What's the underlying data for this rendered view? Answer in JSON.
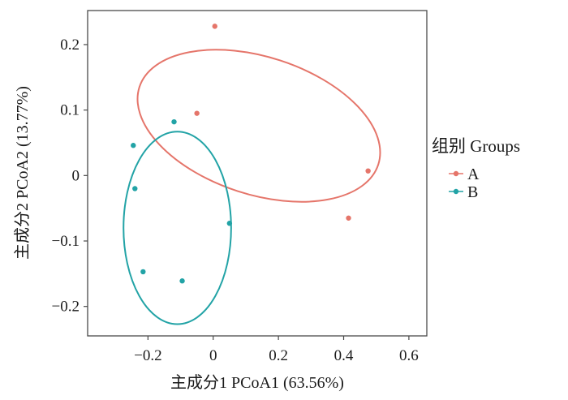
{
  "chart_data": {
    "type": "scatter",
    "xlabel": "主成分1 PCoA1 (63.56%)",
    "ylabel": "主成分2 PCoA2 (13.77%)",
    "xlim": [
      -0.385,
      0.655
    ],
    "ylim": [
      -0.245,
      0.252
    ],
    "xticks": [
      -0.2,
      0,
      0.2,
      0.4,
      0.6
    ],
    "xtick_labels": [
      "−0.2",
      "0",
      "0.2",
      "0.4",
      "0.6"
    ],
    "yticks": [
      -0.2,
      -0.1,
      0,
      0.1,
      0.2
    ],
    "ytick_labels": [
      "−0.2",
      "−0.1",
      "0",
      "0.1",
      "0.2"
    ],
    "grid": false,
    "legend": {
      "title": "组别  Groups",
      "placement": "right"
    },
    "series": [
      {
        "name": "A",
        "color": "#E5756A",
        "points": [
          [
            0.005,
            0.228
          ],
          [
            -0.05,
            0.095
          ],
          [
            0.475,
            0.007
          ],
          [
            0.415,
            -0.065
          ]
        ],
        "ellipse": {
          "cx": 0.14,
          "cy": 0.076,
          "rx": 0.385,
          "ry": 0.105,
          "angle_deg": -18
        }
      },
      {
        "name": "B",
        "color": "#22A3A6",
        "points": [
          [
            -0.12,
            0.082
          ],
          [
            -0.245,
            0.046
          ],
          [
            -0.24,
            -0.02
          ],
          [
            0.05,
            -0.073
          ],
          [
            -0.215,
            -0.147
          ],
          [
            -0.095,
            -0.161
          ]
        ],
        "ellipse": {
          "cx": -0.11,
          "cy": -0.08,
          "rx": 0.165,
          "ry": 0.147,
          "angle_deg": 0
        }
      }
    ]
  }
}
